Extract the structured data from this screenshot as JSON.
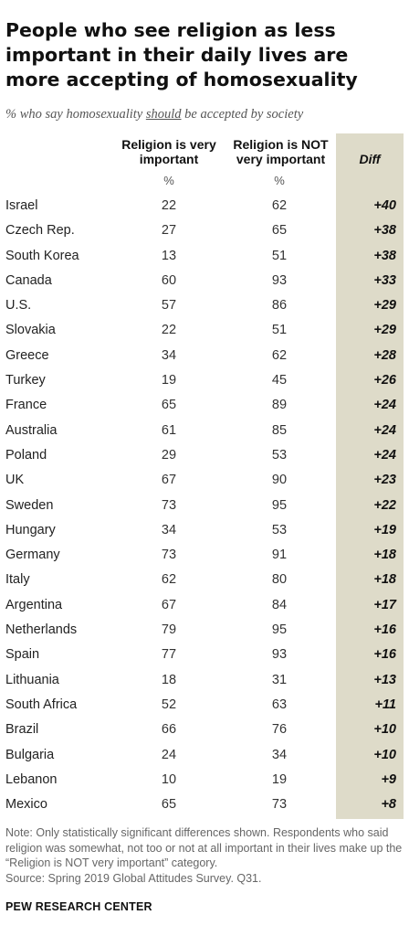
{
  "title": "People who see religion as less important in their daily lives are more accepting of homosexuality",
  "subtitle": {
    "before": "% who say homosexuality ",
    "emphasis": "should",
    "after": " be accepted by society"
  },
  "columns": {
    "religion_very_important": "Religion is very important",
    "religion_not_very_important": "Religion is NOT very important",
    "diff": "Diff",
    "unit": "%"
  },
  "colors": {
    "diff_band": "#dedbc9",
    "title": "#111111",
    "note": "#666666"
  },
  "chart_data": {
    "type": "table",
    "title": "People who see religion as less important in their daily lives are more accepting of homosexuality",
    "columns": [
      "Religion is very important",
      "Religion is NOT very important",
      "Diff"
    ],
    "rows": [
      {
        "country": "Israel",
        "very": 22,
        "not_very": 62,
        "diff": "+40"
      },
      {
        "country": "Czech Rep.",
        "very": 27,
        "not_very": 65,
        "diff": "+38"
      },
      {
        "country": "South Korea",
        "very": 13,
        "not_very": 51,
        "diff": "+38"
      },
      {
        "country": "Canada",
        "very": 60,
        "not_very": 93,
        "diff": "+33"
      },
      {
        "country": "U.S.",
        "very": 57,
        "not_very": 86,
        "diff": "+29"
      },
      {
        "country": "Slovakia",
        "very": 22,
        "not_very": 51,
        "diff": "+29"
      },
      {
        "country": "Greece",
        "very": 34,
        "not_very": 62,
        "diff": "+28"
      },
      {
        "country": "Turkey",
        "very": 19,
        "not_very": 45,
        "diff": "+26"
      },
      {
        "country": "France",
        "very": 65,
        "not_very": 89,
        "diff": "+24"
      },
      {
        "country": "Australia",
        "very": 61,
        "not_very": 85,
        "diff": "+24"
      },
      {
        "country": "Poland",
        "very": 29,
        "not_very": 53,
        "diff": "+24"
      },
      {
        "country": "UK",
        "very": 67,
        "not_very": 90,
        "diff": "+23"
      },
      {
        "country": "Sweden",
        "very": 73,
        "not_very": 95,
        "diff": "+22"
      },
      {
        "country": "Hungary",
        "very": 34,
        "not_very": 53,
        "diff": "+19"
      },
      {
        "country": "Germany",
        "very": 73,
        "not_very": 91,
        "diff": "+18"
      },
      {
        "country": "Italy",
        "very": 62,
        "not_very": 80,
        "diff": "+18"
      },
      {
        "country": "Argentina",
        "very": 67,
        "not_very": 84,
        "diff": "+17"
      },
      {
        "country": "Netherlands",
        "very": 79,
        "not_very": 95,
        "diff": "+16"
      },
      {
        "country": "Spain",
        "very": 77,
        "not_very": 93,
        "diff": "+16"
      },
      {
        "country": "Lithuania",
        "very": 18,
        "not_very": 31,
        "diff": "+13"
      },
      {
        "country": "South Africa",
        "very": 52,
        "not_very": 63,
        "diff": "+11"
      },
      {
        "country": "Brazil",
        "very": 66,
        "not_very": 76,
        "diff": "+10"
      },
      {
        "country": "Bulgaria",
        "very": 24,
        "not_very": 34,
        "diff": "+10"
      },
      {
        "country": "Lebanon",
        "very": 10,
        "not_very": 19,
        "diff": "+9"
      },
      {
        "country": "Mexico",
        "very": 65,
        "not_very": 73,
        "diff": "+8"
      }
    ]
  },
  "note": "Note: Only statistically significant differences shown. Respondents who said religion was somewhat, not too or not at all important in their lives make up the “Religion is NOT very important” category.",
  "source": "Source: Spring 2019 Global Attitudes Survey. Q31.",
  "footer": "PEW RESEARCH CENTER"
}
